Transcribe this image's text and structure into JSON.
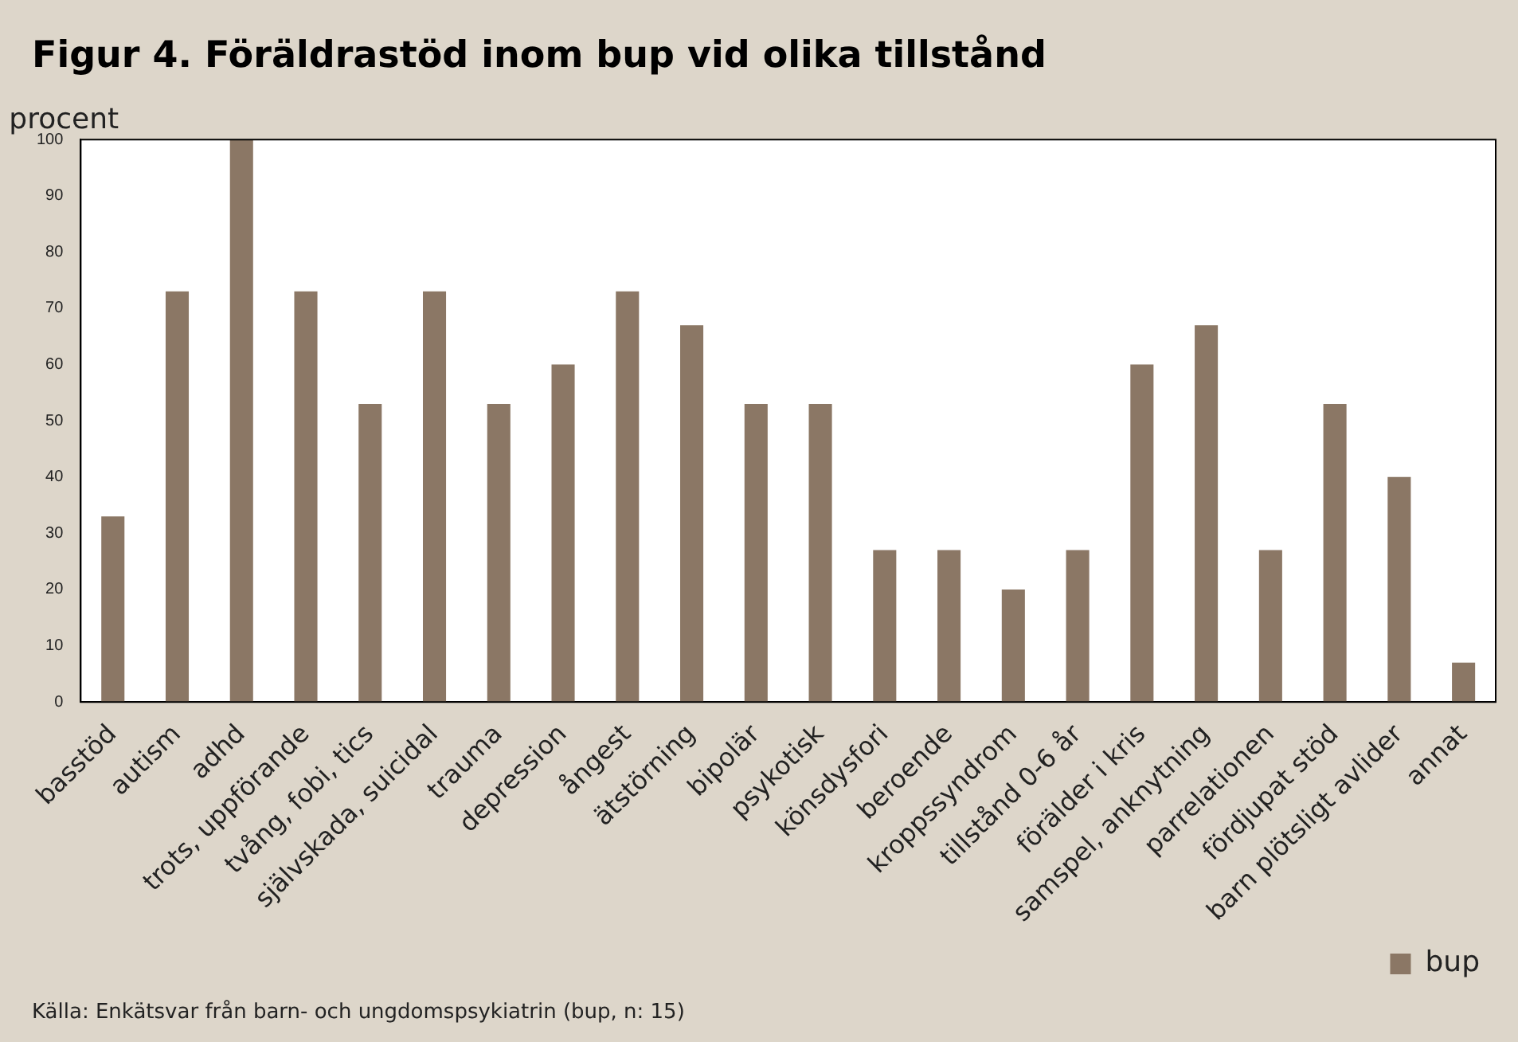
{
  "chart_data": {
    "type": "bar",
    "title": "Figur 4. Föräldrastöd inom bup vid olika tillstånd",
    "ylabel": "procent",
    "categories": [
      "basstöd",
      "autism",
      "adhd",
      "trots, uppförande",
      "tvång, fobi, tics",
      "självskada, suicidal",
      "trauma",
      "depression",
      "ångest",
      "ätstörning",
      "bipolär",
      "psykotisk",
      "könsdysfori",
      "beroende",
      "kroppssyndrom",
      "tillstånd 0-6 år",
      "förälder i kris",
      "samspel, anknytning",
      "parrelationen",
      "fördjupat stöd",
      "barn plötsligt avlider",
      "annat"
    ],
    "series": [
      {
        "name": "bup",
        "color": "#8b7765",
        "values": [
          33,
          73,
          100,
          73,
          53,
          73,
          53,
          60,
          73,
          67,
          53,
          53,
          27,
          27,
          20,
          27,
          60,
          67,
          27,
          53,
          40,
          7
        ]
      }
    ],
    "ylim": [
      0,
      100
    ],
    "yticks": [
      0,
      10,
      20,
      30,
      40,
      50,
      60,
      70,
      80,
      90,
      100
    ],
    "grid": false,
    "legend": "bottom right",
    "annotations": [
      "Källa: Enkätsvar från barn- och ungdomspsykiatrin (bup, n: 15)"
    ]
  }
}
